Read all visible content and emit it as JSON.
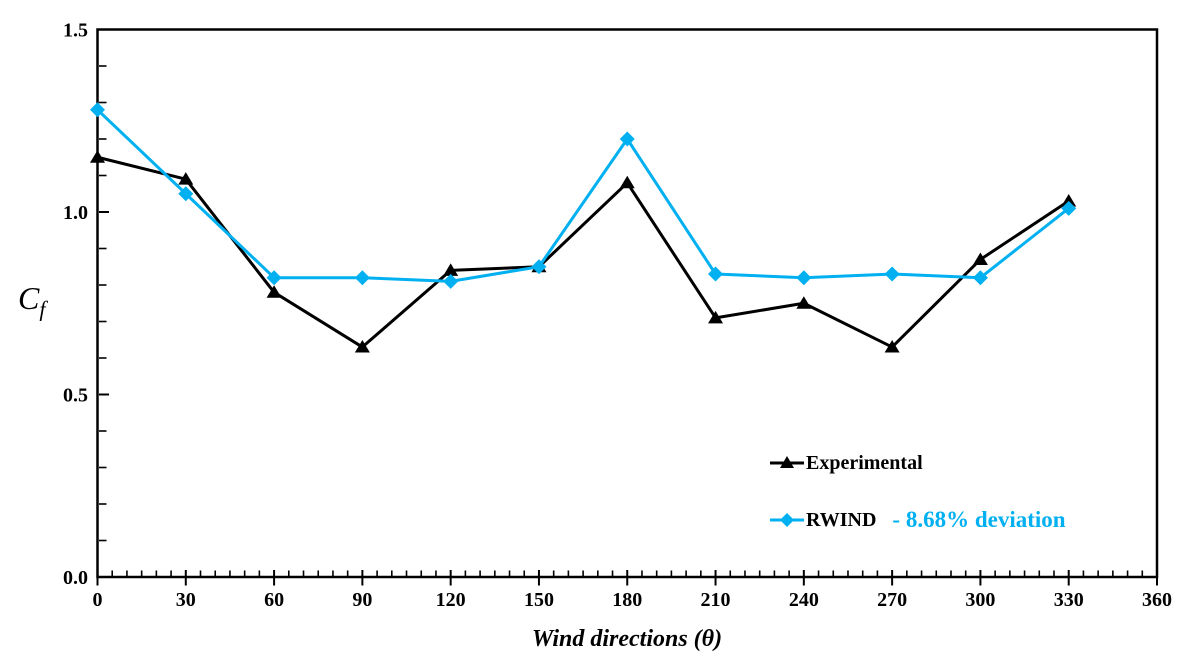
{
  "chart_data": {
    "type": "line",
    "title": "",
    "xlabel": "Wind directions (θ)",
    "ylabel": {
      "main": "C",
      "sub": "f"
    },
    "xlim": [
      0,
      360
    ],
    "ylim": [
      0,
      1.5
    ],
    "x_ticks": [
      0,
      30,
      60,
      90,
      120,
      150,
      180,
      210,
      240,
      270,
      300,
      330,
      360
    ],
    "x_minor_step": 5,
    "y_ticks": [
      0,
      0.5,
      1.0,
      1.5
    ],
    "y_tick_labels": [
      "0.0",
      "0.5",
      "1.0",
      "1.5"
    ],
    "y_minor_step": 0.1,
    "grid": false,
    "background": "#FFFFFF",
    "x": [
      0,
      30,
      60,
      90,
      120,
      150,
      180,
      210,
      240,
      270,
      300,
      330
    ],
    "series": [
      {
        "name": "Experimental",
        "color": "#000000",
        "marker": "triangle",
        "values": [
          1.15,
          1.09,
          0.78,
          0.63,
          0.84,
          0.85,
          1.08,
          0.71,
          0.75,
          0.63,
          0.87,
          1.03
        ]
      },
      {
        "name": "RWIND",
        "color": "#00B0F0",
        "marker": "diamond",
        "values": [
          1.28,
          1.05,
          0.82,
          0.82,
          0.81,
          0.85,
          1.2,
          0.83,
          0.82,
          0.83,
          0.82,
          1.01
        ]
      }
    ],
    "legend": {
      "position": "inside-lower-right",
      "entries": [
        {
          "label": "Experimental",
          "marker": "triangle",
          "color": "#000000",
          "note": ""
        },
        {
          "label": "RWIND",
          "marker": "diamond",
          "color": "#00B0F0",
          "note": "- 8.68% deviation"
        }
      ]
    }
  }
}
